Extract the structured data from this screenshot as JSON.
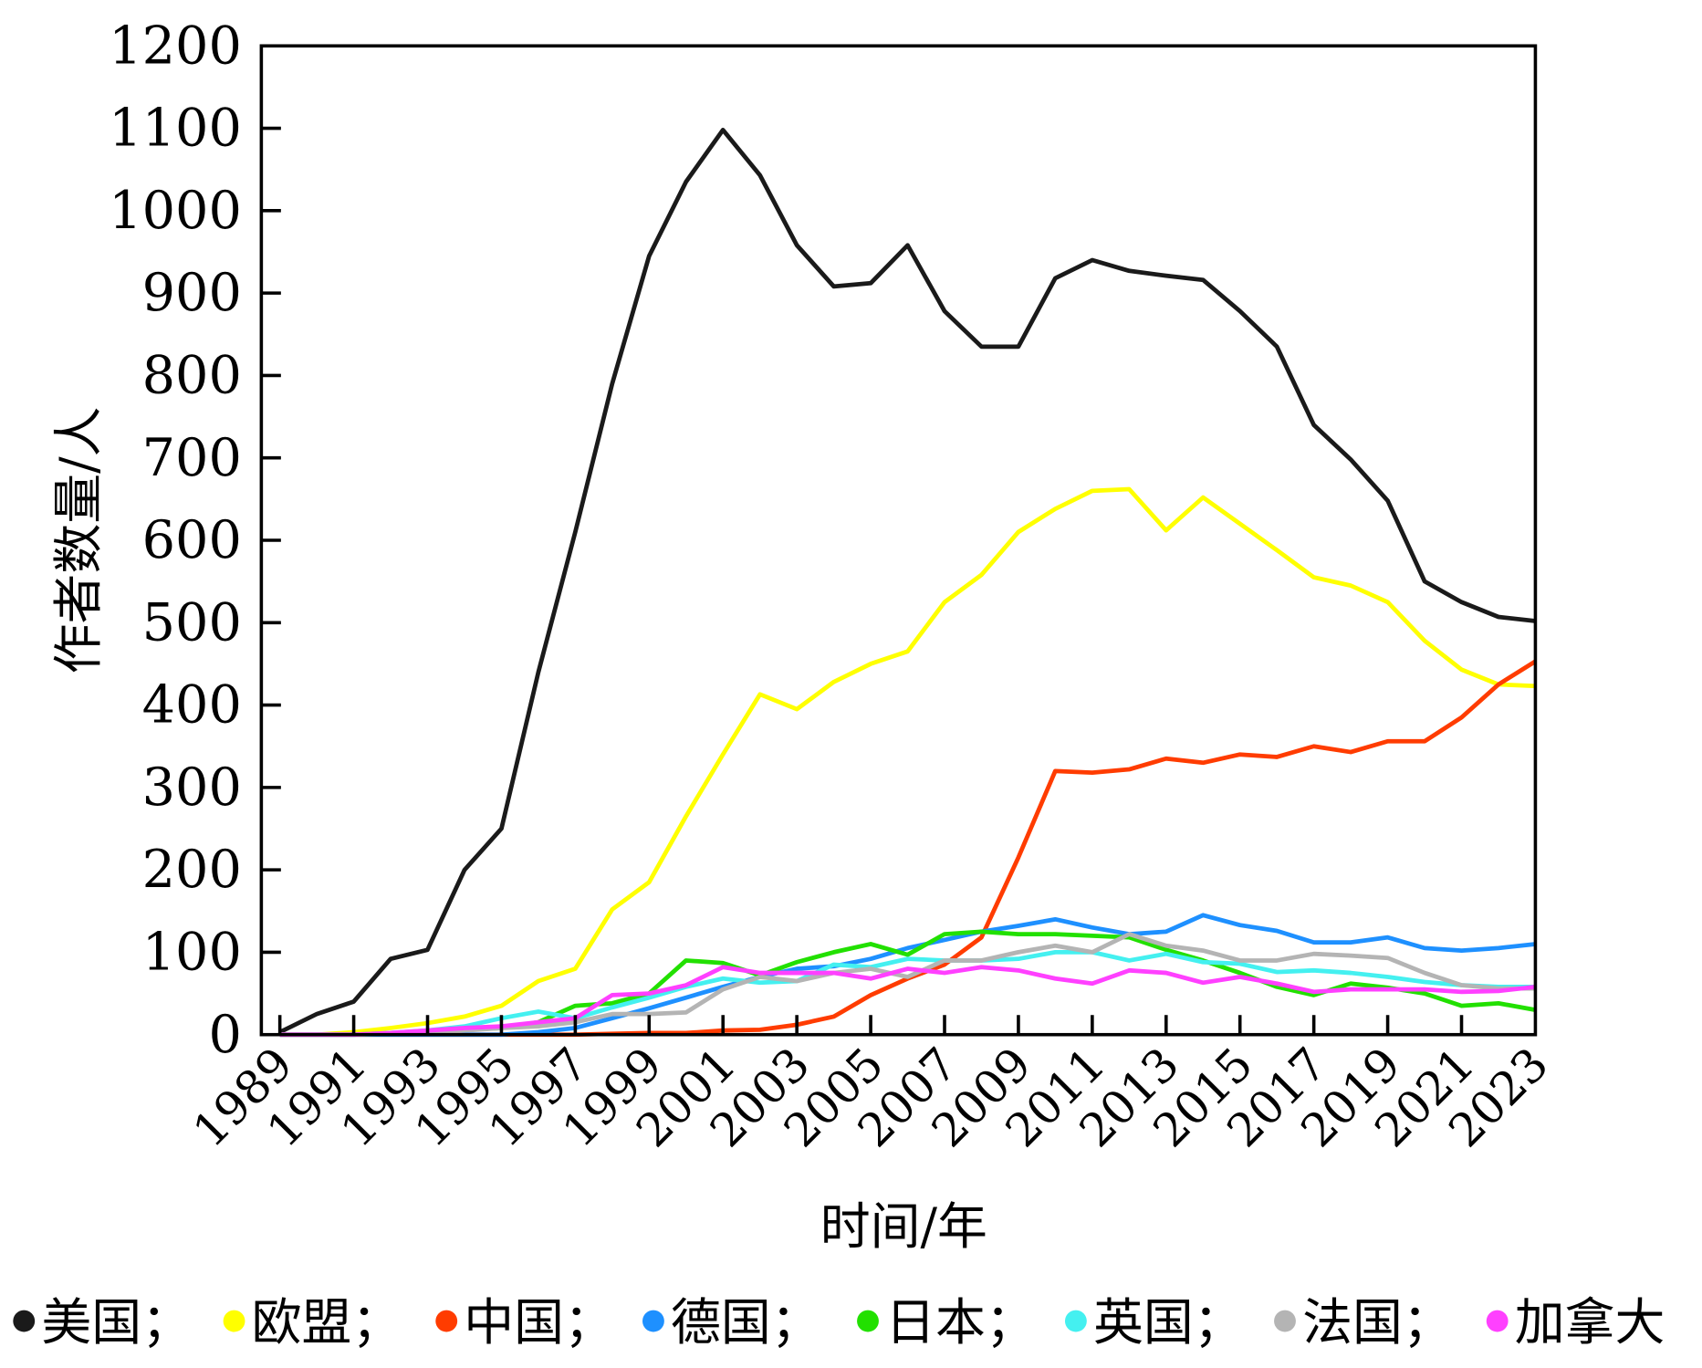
{
  "chart_data": {
    "type": "line",
    "title": "",
    "xlabel": "时间/年",
    "ylabel": "作者数量/人",
    "ylim": [
      0,
      1200
    ],
    "yticks": [
      0,
      100,
      200,
      300,
      400,
      500,
      600,
      700,
      800,
      900,
      1000,
      1100,
      1200
    ],
    "xlim": [
      1989,
      2023
    ],
    "xtick_labels": [
      "1989",
      "1991",
      "1993",
      "1995",
      "1997",
      "1999",
      "2001",
      "2003",
      "2005",
      "2007",
      "2009",
      "2011",
      "2013",
      "2015",
      "2017",
      "2019",
      "2021",
      "2023"
    ],
    "legend_placement": "bottom",
    "x": [
      1989,
      1990,
      1991,
      1992,
      1993,
      1994,
      1995,
      1996,
      1997,
      1998,
      1999,
      2000,
      2001,
      2002,
      2003,
      2004,
      2005,
      2006,
      2007,
      2008,
      2009,
      2010,
      2011,
      2012,
      2013,
      2014,
      2015,
      2016,
      2017,
      2018,
      2019,
      2020,
      2021,
      2022,
      2023
    ],
    "series": [
      {
        "name": "美国",
        "legend": "美国；",
        "color": "#1a1a1a",
        "values": [
          3,
          25,
          40,
          92,
          103,
          200,
          250,
          440,
          610,
          790,
          945,
          1035,
          1098,
          1043,
          958,
          908,
          912,
          958,
          878,
          835,
          835,
          918,
          940,
          927,
          921,
          916,
          878,
          835,
          740,
          698,
          648,
          550,
          525,
          507,
          502
        ]
      },
      {
        "name": "欧盟",
        "legend": "欧盟；",
        "color": "#ffff00",
        "values": [
          0,
          0,
          3,
          8,
          14,
          22,
          35,
          65,
          80,
          152,
          185,
          265,
          340,
          413,
          395,
          428,
          450,
          465,
          525,
          558,
          610,
          638,
          660,
          662,
          612,
          652,
          620,
          588,
          555,
          545,
          525,
          478,
          443,
          425,
          423
        ]
      },
      {
        "name": "中国",
        "legend": "中国；",
        "color": "#ff3c00",
        "values": [
          0,
          0,
          0,
          0,
          0,
          0,
          0,
          0,
          0,
          1,
          2,
          2,
          5,
          6,
          12,
          22,
          48,
          68,
          85,
          118,
          215,
          320,
          318,
          322,
          335,
          330,
          340,
          337,
          350,
          343,
          356,
          356,
          385,
          425,
          453
        ]
      },
      {
        "name": "德国",
        "legend": "德国；",
        "color": "#1e90ff",
        "values": [
          0,
          0,
          0,
          0,
          0,
          0,
          0,
          3,
          8,
          20,
          32,
          45,
          58,
          70,
          80,
          83,
          92,
          105,
          115,
          125,
          132,
          140,
          130,
          122,
          125,
          145,
          133,
          126,
          112,
          112,
          118,
          105,
          102,
          105,
          110
        ]
      },
      {
        "name": "日本",
        "legend": "日本；",
        "color": "#22e000",
        "values": [
          0,
          0,
          0,
          2,
          4,
          6,
          8,
          15,
          35,
          38,
          50,
          90,
          87,
          72,
          88,
          100,
          110,
          97,
          122,
          125,
          122,
          122,
          120,
          118,
          103,
          90,
          75,
          58,
          48,
          62,
          57,
          50,
          35,
          38,
          30
        ]
      },
      {
        "name": "英国",
        "legend": "英国；",
        "color": "#44f0f0",
        "values": [
          0,
          0,
          0,
          2,
          5,
          10,
          20,
          28,
          20,
          33,
          45,
          58,
          68,
          63,
          65,
          85,
          82,
          92,
          90,
          90,
          92,
          100,
          100,
          90,
          98,
          88,
          86,
          76,
          78,
          75,
          70,
          64,
          60,
          58,
          58
        ]
      },
      {
        "name": "法国",
        "legend": "法国；",
        "color": "#b4b4b4",
        "values": [
          0,
          0,
          0,
          1,
          2,
          5,
          8,
          10,
          15,
          25,
          25,
          27,
          55,
          70,
          65,
          75,
          80,
          70,
          90,
          90,
          100,
          108,
          100,
          122,
          108,
          102,
          90,
          90,
          98,
          96,
          93,
          75,
          60,
          56,
          56
        ]
      },
      {
        "name": "加拿大",
        "legend": "加拿大",
        "color": "#ff40ff",
        "values": [
          0,
          0,
          0,
          2,
          5,
          8,
          10,
          15,
          20,
          48,
          50,
          60,
          82,
          75,
          75,
          75,
          68,
          80,
          75,
          82,
          78,
          68,
          62,
          78,
          75,
          63,
          70,
          62,
          52,
          55,
          55,
          55,
          52,
          53,
          58
        ]
      }
    ]
  }
}
